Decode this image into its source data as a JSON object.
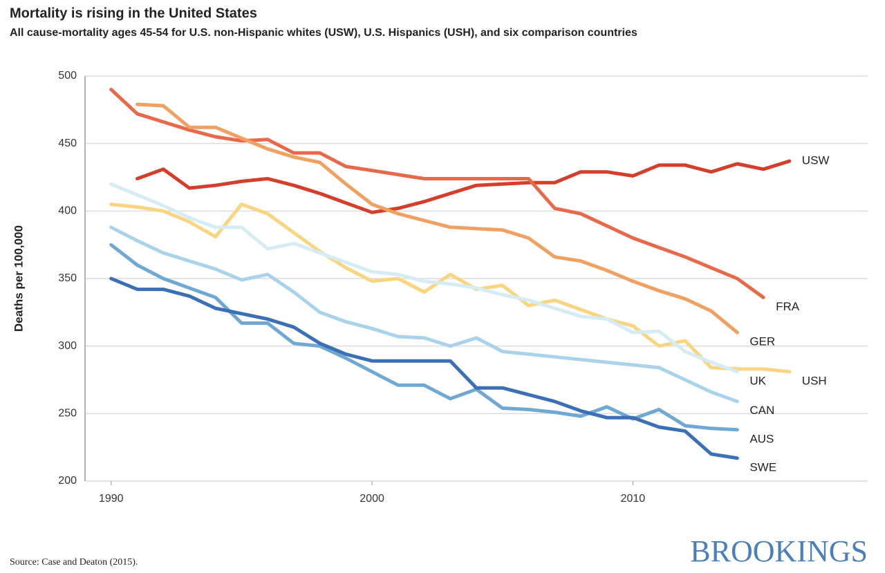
{
  "chart_data": {
    "type": "line",
    "title": "Mortality is rising in the United States",
    "subtitle": "All cause-mortality ages 45-54 for U.S. non-Hispanic whites (USW), U.S. Hispanics (USH), and six comparison countries",
    "y_label": "Deaths per 100,000",
    "source": "Source: Case and Deaton (2015).",
    "brand": "BROOKINGS",
    "x": [
      1990,
      1991,
      1992,
      1993,
      1994,
      1995,
      1996,
      1997,
      1998,
      1999,
      2000,
      2001,
      2002,
      2003,
      2004,
      2005,
      2006,
      2007,
      2008,
      2009,
      2010,
      2011,
      2012,
      2013,
      2014,
      2015,
      2016
    ],
    "xlim": [
      1989,
      2019
    ],
    "xticks": [
      1990,
      2000,
      2010
    ],
    "ylim": [
      200,
      500
    ],
    "yticks": [
      200,
      250,
      300,
      350,
      400,
      450,
      500
    ],
    "grid": true,
    "series": [
      {
        "name": "USW",
        "color": "#d33f2b",
        "values": [
          null,
          424,
          431,
          417,
          419,
          422,
          424,
          419,
          413,
          406,
          399,
          402,
          407,
          413,
          419,
          420,
          421,
          421,
          429,
          429,
          426,
          434,
          434,
          429,
          435,
          431,
          437
        ]
      },
      {
        "name": "FRA",
        "color": "#e8694a",
        "values": [
          490,
          472,
          466,
          460,
          455,
          452,
          453,
          443,
          443,
          433,
          430,
          427,
          424,
          424,
          424,
          424,
          424,
          402,
          398,
          389,
          380,
          373,
          366,
          358,
          350,
          336,
          null
        ]
      },
      {
        "name": "GER",
        "color": "#f0a060",
        "values": [
          null,
          479,
          478,
          462,
          462,
          454,
          446,
          440,
          436,
          420,
          405,
          398,
          393,
          388,
          387,
          386,
          380,
          366,
          363,
          356,
          348,
          341,
          335,
          326,
          310,
          null,
          null
        ]
      },
      {
        "name": "USH",
        "color": "#f8d57e",
        "values": [
          405,
          403,
          400,
          392,
          381,
          405,
          398,
          384,
          370,
          358,
          348,
          350,
          340,
          353,
          342,
          345,
          330,
          334,
          327,
          320,
          315,
          300,
          304,
          284,
          283,
          283,
          281
        ]
      },
      {
        "name": "UK",
        "color": "#d6ecf5",
        "values": [
          420,
          412,
          404,
          395,
          388,
          388,
          372,
          376,
          369,
          362,
          355,
          353,
          348,
          346,
          343,
          338,
          334,
          328,
          322,
          320,
          310,
          311,
          296,
          288,
          281,
          null,
          null
        ]
      },
      {
        "name": "CAN",
        "color": "#a8d3ea",
        "values": [
          388,
          378,
          369,
          363,
          357,
          349,
          353,
          340,
          325,
          318,
          313,
          307,
          306,
          300,
          306,
          296,
          294,
          292,
          290,
          288,
          286,
          284,
          275,
          266,
          259,
          null,
          null
        ]
      },
      {
        "name": "AUS",
        "color": "#6fa8d3",
        "values": [
          375,
          360,
          350,
          343,
          336,
          317,
          317,
          302,
          300,
          291,
          281,
          271,
          271,
          261,
          268,
          254,
          253,
          251,
          248,
          255,
          246,
          253,
          241,
          239,
          238,
          null,
          null
        ]
      },
      {
        "name": "SWE",
        "color": "#3b6fb6",
        "values": [
          350,
          342,
          342,
          337,
          328,
          324,
          320,
          314,
          302,
          294,
          289,
          289,
          289,
          289,
          269,
          269,
          264,
          259,
          252,
          247,
          247,
          240,
          237,
          220,
          217,
          null,
          null
        ]
      }
    ]
  }
}
